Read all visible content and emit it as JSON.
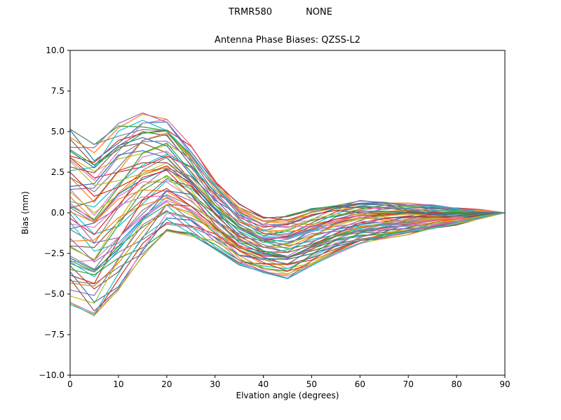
{
  "figure": {
    "suptitle_left": "TRMR580",
    "suptitle_right": "NONE",
    "title": "Antenna Phase Biases: QZSS-L2",
    "xlabel": "Elvation angle (degrees)",
    "ylabel": "Bias (mm)"
  },
  "chart_data": {
    "type": "line",
    "suptitle": "TRMR580         NONE",
    "title": "Antenna Phase Biases: QZSS-L2",
    "xlabel": "Elvation angle (degrees)",
    "ylabel": "Bias (mm)",
    "xlim": [
      0,
      90
    ],
    "ylim": [
      -10,
      10
    ],
    "xticks": [
      0,
      10,
      20,
      30,
      40,
      50,
      60,
      70,
      80,
      90
    ],
    "xtick_labels": [
      "0",
      "10",
      "20",
      "30",
      "40",
      "50",
      "60",
      "70",
      "80",
      "90"
    ],
    "yticks": [
      10.0,
      7.5,
      5.0,
      2.5,
      0.0,
      -2.5,
      -5.0,
      -7.5,
      -10.0
    ],
    "ytick_labels": [
      "10.0",
      "7.5",
      "5.0",
      "2.5",
      "0.0",
      "−2.5",
      "−5.0",
      "−7.5",
      "−10.0"
    ],
    "grid": false,
    "legend": "none",
    "description": "Dense bundle of unlabeled per-satellite/per-arc phase-bias curves; individual series are not distinguishable, so the band is captured by its upper/lower envelopes sampled every 5 degrees of elevation.",
    "x": [
      0,
      5,
      10,
      15,
      20,
      25,
      30,
      35,
      40,
      45,
      50,
      55,
      60,
      65,
      70,
      75,
      80,
      85,
      90
    ],
    "upper_envelope": [
      5.1,
      4.2,
      5.5,
      6.1,
      5.8,
      4.1,
      2.0,
      0.5,
      -0.3,
      -0.2,
      0.2,
      0.5,
      0.7,
      0.65,
      0.55,
      0.45,
      0.3,
      0.15,
      0.0
    ],
    "lower_envelope": [
      -5.6,
      -6.3,
      -4.7,
      -2.7,
      -1.1,
      -1.4,
      -2.2,
      -3.2,
      -3.7,
      -4.0,
      -3.3,
      -2.5,
      -1.9,
      -1.6,
      -1.3,
      -1.0,
      -0.7,
      -0.35,
      0.0
    ],
    "num_lines": 60,
    "line_width": 1.2,
    "colors": [
      "#1f77b4",
      "#ff7f0e",
      "#2ca02c",
      "#d62728",
      "#9467bd",
      "#8c564b",
      "#e377c2",
      "#7f7f7f",
      "#bcbd22",
      "#17becf"
    ],
    "style": {
      "background": "#ffffff",
      "axes_color": "#000000"
    }
  }
}
